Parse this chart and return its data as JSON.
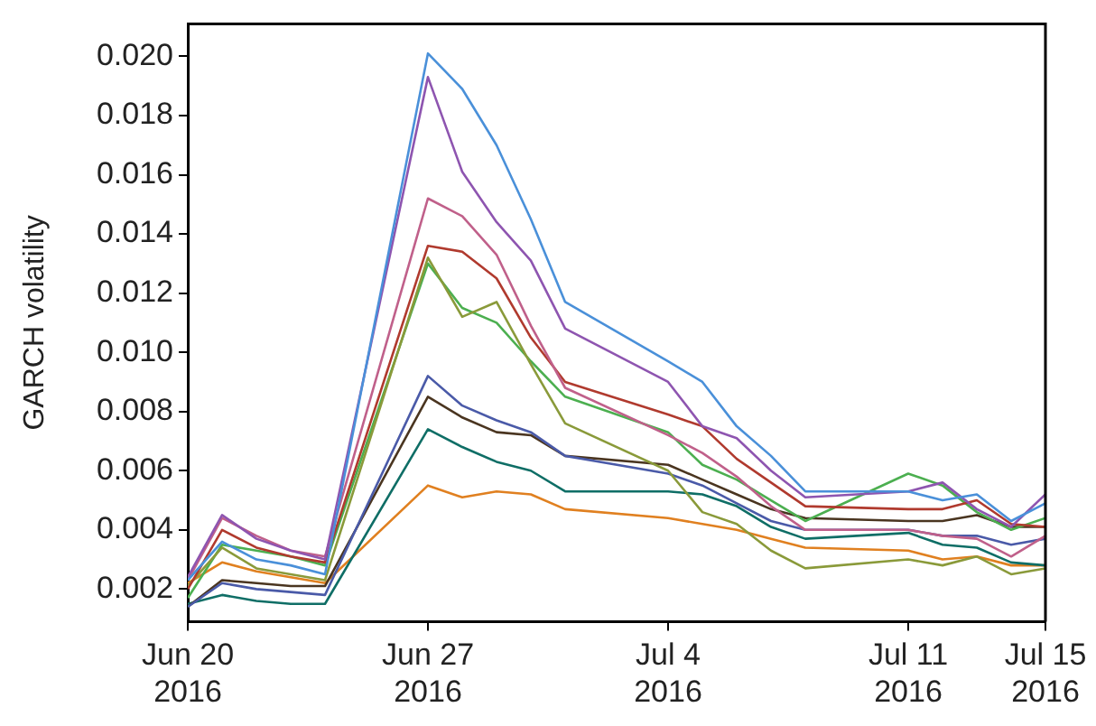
{
  "chart_data": {
    "type": "line",
    "ylabel": "GARCH volatility",
    "x": [
      "2016-06-20",
      "2016-06-21",
      "2016-06-22",
      "2016-06-23",
      "2016-06-24",
      "2016-06-27",
      "2016-06-28",
      "2016-06-29",
      "2016-06-30",
      "2016-07-01",
      "2016-07-04",
      "2016-07-05",
      "2016-07-06",
      "2016-07-07",
      "2016-07-08",
      "2016-07-11",
      "2016-07-12",
      "2016-07-13",
      "2016-07-14",
      "2016-07-15"
    ],
    "xlim": [
      "2016-06-20",
      "2016-07-15"
    ],
    "xticks": [
      {
        "value": "2016-06-20",
        "label": "Jun 20\n2016"
      },
      {
        "value": "2016-06-27",
        "label": "Jun 27\n2016"
      },
      {
        "value": "2016-07-04",
        "label": "Jul 4\n2016"
      },
      {
        "value": "2016-07-11",
        "label": "Jul 11\n2016"
      },
      {
        "value": "2016-07-15",
        "label": "Jul 15\n2016"
      }
    ],
    "ylim": [
      0.0009,
      0.0211
    ],
    "yticks": [
      0.002,
      0.004,
      0.006,
      0.008,
      {
        "value": 0.01,
        "label": "0.010"
      },
      0.012,
      0.014,
      0.016,
      0.018,
      {
        "value": 0.02,
        "label": "0.020"
      }
    ],
    "grid": false,
    "legend": false,
    "marker": "none",
    "line_style": "solid",
    "series": [
      {
        "color": "#4a90d9",
        "values": [
          0.0023,
          0.0036,
          0.003,
          0.0028,
          0.0025,
          0.0201,
          0.0189,
          0.017,
          0.0145,
          0.0117,
          0.0097,
          0.009,
          0.0075,
          0.0065,
          0.0053,
          0.0053,
          0.005,
          0.0052,
          0.0043,
          0.0049
        ]
      },
      {
        "color": "#8e55b0",
        "values": [
          0.0024,
          0.0045,
          0.0037,
          0.0033,
          0.003,
          0.0193,
          0.0161,
          0.0144,
          0.0131,
          0.0108,
          0.009,
          0.0075,
          0.0071,
          0.006,
          0.0051,
          0.0053,
          0.0056,
          0.0047,
          0.0041,
          0.0052
        ]
      },
      {
        "color": "#c0608a",
        "values": [
          0.0023,
          0.0044,
          0.0038,
          0.0033,
          0.0031,
          0.0152,
          0.0146,
          0.0133,
          0.0109,
          0.0088,
          0.0072,
          0.0066,
          0.0058,
          0.0048,
          0.004,
          0.004,
          0.0038,
          0.0037,
          0.0031,
          0.0038
        ]
      },
      {
        "color": "#b03a2e",
        "values": [
          0.002,
          0.004,
          0.0034,
          0.0031,
          0.0029,
          0.0136,
          0.0134,
          0.0125,
          0.0105,
          0.009,
          0.0079,
          0.0075,
          0.0064,
          0.0056,
          0.0048,
          0.0047,
          0.0047,
          0.005,
          0.0042,
          0.0041
        ]
      },
      {
        "color": "#8a9a3a",
        "values": [
          0.0021,
          0.0034,
          0.0027,
          0.0025,
          0.0023,
          0.0132,
          0.0112,
          0.0117,
          0.0096,
          0.0076,
          0.006,
          0.0046,
          0.0042,
          0.0033,
          0.0027,
          0.003,
          0.0028,
          0.0031,
          0.0025,
          0.0027
        ]
      },
      {
        "color": "#4caf50",
        "values": [
          0.0017,
          0.0035,
          0.0033,
          0.0031,
          0.0028,
          0.013,
          0.0115,
          0.011,
          0.0097,
          0.0085,
          0.0073,
          0.0062,
          0.0057,
          0.005,
          0.0043,
          0.0059,
          0.0055,
          0.0046,
          0.004,
          0.0044
        ]
      },
      {
        "color": "#4a5aa8",
        "values": [
          0.0014,
          0.0022,
          0.002,
          0.0019,
          0.0018,
          0.0092,
          0.0082,
          0.0077,
          0.0073,
          0.0065,
          0.0059,
          0.0055,
          0.0049,
          0.0043,
          0.004,
          0.004,
          0.0038,
          0.0038,
          0.0035,
          0.0037
        ]
      },
      {
        "color": "#4a3520",
        "values": [
          0.0014,
          0.0023,
          0.0022,
          0.0021,
          0.0021,
          0.0085,
          0.0078,
          0.0073,
          0.0072,
          0.0065,
          0.0062,
          0.0057,
          0.0052,
          0.0047,
          0.0044,
          0.0043,
          0.0043,
          0.0045,
          0.0041,
          0.0041
        ]
      },
      {
        "color": "#0f6e66",
        "values": [
          0.0015,
          0.0018,
          0.0016,
          0.0015,
          0.0015,
          0.0074,
          0.0068,
          0.0063,
          0.006,
          0.0053,
          0.0053,
          0.0052,
          0.0048,
          0.0041,
          0.0037,
          0.0039,
          0.0035,
          0.0034,
          0.0029,
          0.0028
        ]
      },
      {
        "color": "#e08020",
        "values": [
          0.0022,
          0.0029,
          0.0026,
          0.0024,
          0.0022,
          0.0055,
          0.0051,
          0.0053,
          0.0052,
          0.0047,
          0.0044,
          0.0042,
          0.004,
          0.0037,
          0.0034,
          0.0033,
          0.003,
          0.0031,
          0.0028,
          0.0028
        ]
      }
    ]
  }
}
